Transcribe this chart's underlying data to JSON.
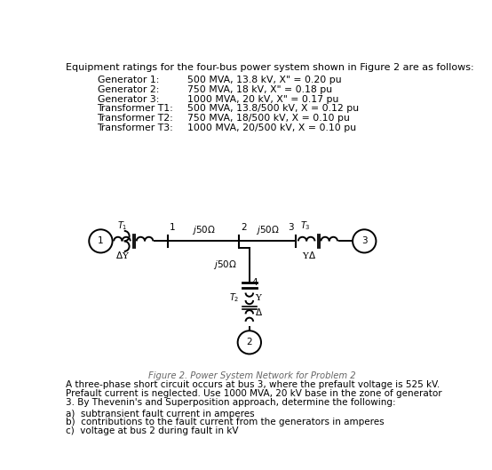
{
  "title_text": "Equipment ratings for the four-bus power system shown in Figure 2 are as follows:",
  "equipment": [
    [
      "Generator 1:",
      "500 MVA, 13.8 kV, X\" = 0.20 pu"
    ],
    [
      "Generator 2:",
      "750 MVA, 18 kV, X\" = 0.18 pu"
    ],
    [
      "Generator 3:",
      "1000 MVA, 20 kV, X\" = 0.17 pu"
    ],
    [
      "Transformer T1:",
      "500 MVA, 13.8/500 kV, X = 0.12 pu"
    ],
    [
      "Transformer T2:",
      "750 MVA, 18/500 kV, X = 0.10 pu"
    ],
    [
      "Transformer T3:",
      "1000 MVA, 20/500 kV, X = 0.10 pu"
    ]
  ],
  "figure_caption": "Figure 2. Power System Network for Problem 2",
  "problem_text_lines": [
    "A three-phase short circuit occurs at bus 3, where the prefault voltage is 525 kV.",
    "Prefault current is neglected. Use 1000 MVA, 20 kV base in the zone of generator",
    "3. By Thevenin's and Superposition approach, determine the following:"
  ],
  "questions": [
    "a)  subtransient fault current in amperes",
    "b)  contributions to the fault current from the generators in amperes",
    "c)  voltage at bus 2 during fault in kV"
  ],
  "bg_color": "#ffffff",
  "text_color": "#000000",
  "fig_caption_color": "#666666"
}
